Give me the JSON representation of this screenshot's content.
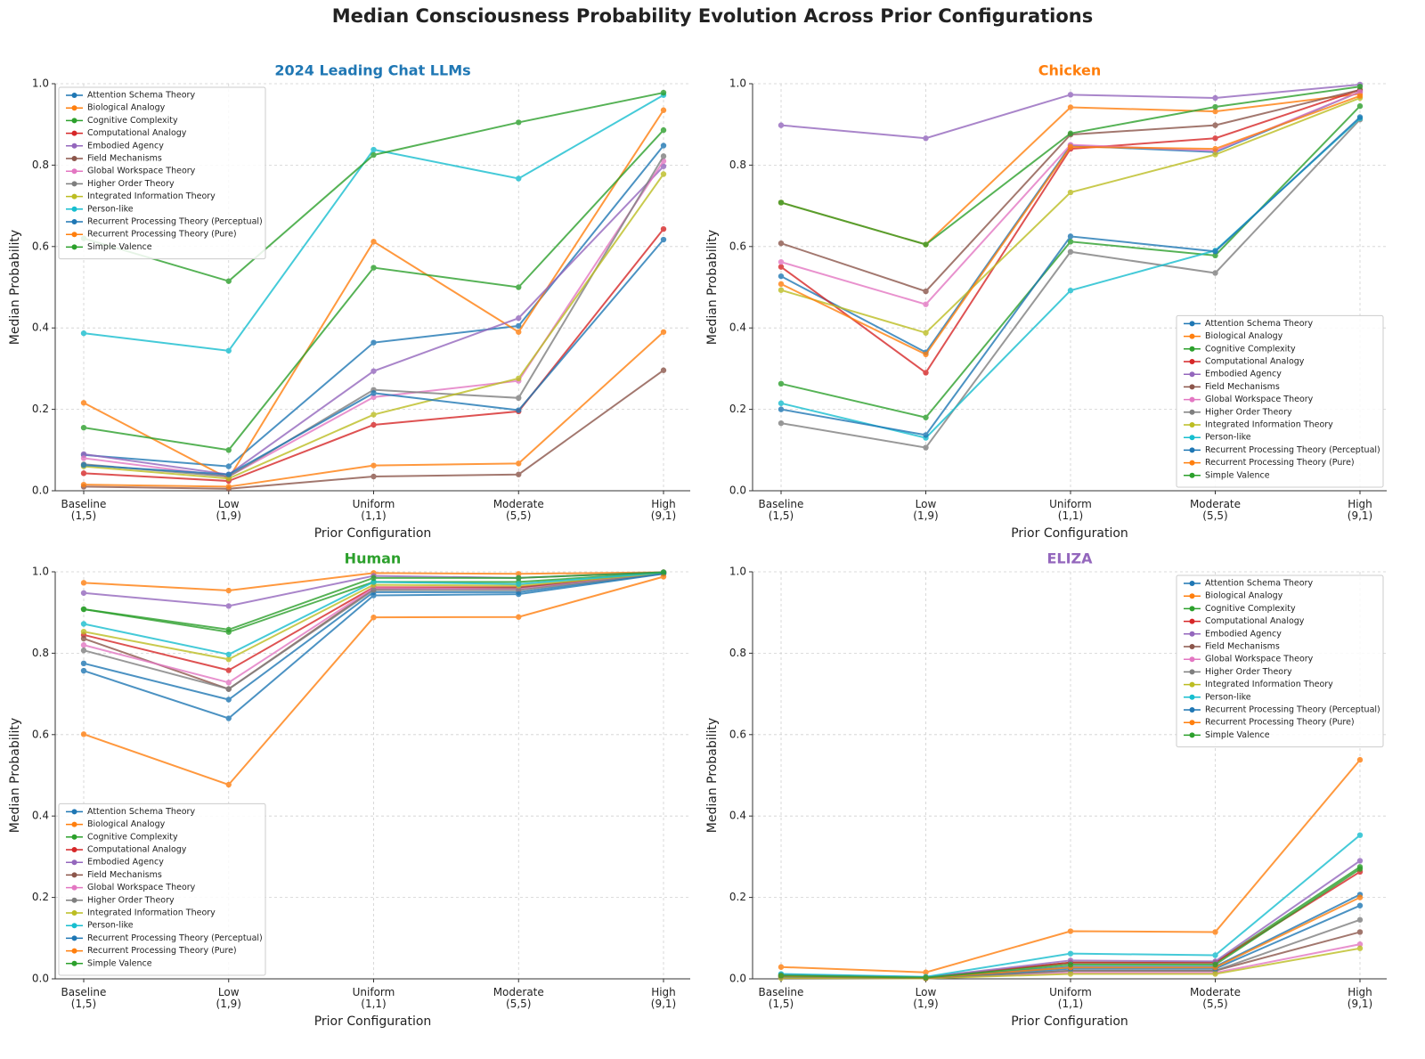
{
  "title": "Median Consciousness Probability Evolution Across Prior Configurations",
  "chart_data": [
    {
      "type": "line",
      "title": "2024 Leading Chat LLMs",
      "title_color": "#1f77b4",
      "xlabel": "Prior Configuration",
      "ylabel": "Median Probability",
      "legend": "upper left",
      "grid": true,
      "categories": [
        "Baseline\n(1,5)",
        "Low\n(1,9)",
        "Uniform\n(1,1)",
        "Moderate\n(5,5)",
        "High\n(9,1)"
      ],
      "ylim": [
        0,
        1
      ],
      "yticks": [
        {
          "value": 0,
          "label": "0.0"
        },
        0.2,
        0.4,
        0.6,
        0.8,
        {
          "value": 1,
          "label": "1.0"
        }
      ],
      "series": [
        {
          "name": "Attention Schema Theory",
          "color": "#1f77b4",
          "values": [
            0.088,
            0.06,
            0.364,
            0.405,
            0.848
          ]
        },
        {
          "name": "Biological Analogy",
          "color": "#ff7f0e",
          "values": [
            0.216,
            0.03,
            0.612,
            0.39,
            0.935
          ]
        },
        {
          "name": "Cognitive Complexity",
          "color": "#2ca02c",
          "values": [
            0.155,
            0.1,
            0.548,
            0.5,
            0.886
          ]
        },
        {
          "name": "Computational Analogy",
          "color": "#d62728",
          "values": [
            0.043,
            0.024,
            0.162,
            0.195,
            0.643
          ]
        },
        {
          "name": "Embodied Agency",
          "color": "#9467bd",
          "values": [
            0.09,
            0.04,
            0.294,
            0.424,
            0.797
          ]
        },
        {
          "name": "Field Mechanisms",
          "color": "#8c564b",
          "values": [
            0.01,
            0.005,
            0.035,
            0.04,
            0.296
          ]
        },
        {
          "name": "Global Workspace Theory",
          "color": "#e377c2",
          "values": [
            0.08,
            0.035,
            0.23,
            0.27,
            0.81
          ]
        },
        {
          "name": "Higher Order Theory",
          "color": "#7f7f7f",
          "values": [
            0.065,
            0.035,
            0.248,
            0.228,
            0.822
          ]
        },
        {
          "name": "Integrated Information Theory",
          "color": "#bcbd22",
          "values": [
            0.06,
            0.03,
            0.187,
            0.276,
            0.778
          ]
        },
        {
          "name": "Person-like",
          "color": "#17becf",
          "values": [
            0.387,
            0.344,
            0.838,
            0.767,
            0.972
          ]
        },
        {
          "name": "Recurrent Processing Theory (Perceptual)",
          "color": "#1f77b4",
          "values": [
            0.063,
            0.04,
            0.24,
            0.198,
            0.617
          ]
        },
        {
          "name": "Recurrent Processing Theory (Pure)",
          "color": "#ff7f0e",
          "values": [
            0.015,
            0.01,
            0.062,
            0.067,
            0.39
          ]
        },
        {
          "name": "Simple Valence",
          "color": "#2ca02c",
          "values": [
            0.62,
            0.515,
            0.825,
            0.905,
            0.978
          ]
        }
      ]
    },
    {
      "type": "line",
      "title": "Chicken",
      "title_color": "#ff7f0e",
      "xlabel": "Prior Configuration",
      "ylabel": "Median Probability",
      "legend": "lower right",
      "grid": true,
      "categories": [
        "Baseline\n(1,5)",
        "Low\n(1,9)",
        "Uniform\n(1,1)",
        "Moderate\n(5,5)",
        "High\n(9,1)"
      ],
      "ylim": [
        0,
        1
      ],
      "yticks": [
        {
          "value": 0,
          "label": "0.0"
        },
        0.2,
        0.4,
        0.6,
        0.8,
        {
          "value": 1,
          "label": "1.0"
        }
      ],
      "series": [
        {
          "name": "Attention Schema Theory",
          "color": "#1f77b4",
          "values": [
            0.527,
            0.34,
            0.848,
            0.832,
            0.98
          ]
        },
        {
          "name": "Biological Analogy",
          "color": "#ff7f0e",
          "values": [
            0.708,
            0.605,
            0.942,
            0.932,
            0.975
          ]
        },
        {
          "name": "Cognitive Complexity",
          "color": "#2ca02c",
          "values": [
            0.263,
            0.18,
            0.612,
            0.578,
            0.945
          ]
        },
        {
          "name": "Computational Analogy",
          "color": "#d62728",
          "values": [
            0.55,
            0.29,
            0.84,
            0.866,
            0.985
          ]
        },
        {
          "name": "Embodied Agency",
          "color": "#9467bd",
          "values": [
            0.898,
            0.866,
            0.973,
            0.965,
            0.998
          ]
        },
        {
          "name": "Field Mechanisms",
          "color": "#8c564b",
          "values": [
            0.608,
            0.49,
            0.875,
            0.898,
            0.985
          ]
        },
        {
          "name": "Global Workspace Theory",
          "color": "#e377c2",
          "values": [
            0.562,
            0.458,
            0.85,
            0.835,
            0.98
          ]
        },
        {
          "name": "Higher Order Theory",
          "color": "#7f7f7f",
          "values": [
            0.166,
            0.106,
            0.587,
            0.535,
            0.912
          ]
        },
        {
          "name": "Integrated Information Theory",
          "color": "#bcbd22",
          "values": [
            0.493,
            0.388,
            0.733,
            0.826,
            0.965
          ]
        },
        {
          "name": "Person-like",
          "color": "#17becf",
          "values": [
            0.215,
            0.13,
            0.492,
            0.59,
            0.915
          ]
        },
        {
          "name": "Recurrent Processing Theory (Perceptual)",
          "color": "#1f77b4",
          "values": [
            0.2,
            0.137,
            0.625,
            0.588,
            0.918
          ]
        },
        {
          "name": "Recurrent Processing Theory (Pure)",
          "color": "#ff7f0e",
          "values": [
            0.508,
            0.335,
            0.845,
            0.84,
            0.97
          ]
        },
        {
          "name": "Simple Valence",
          "color": "#2ca02c",
          "values": [
            0.708,
            0.605,
            0.878,
            0.943,
            0.993
          ]
        }
      ]
    },
    {
      "type": "line",
      "title": "Human",
      "title_color": "#2ca02c",
      "xlabel": "Prior Configuration",
      "ylabel": "Median Probability",
      "legend": "lower left",
      "grid": true,
      "categories": [
        "Baseline\n(1,5)",
        "Low\n(1,9)",
        "Uniform\n(1,1)",
        "Moderate\n(5,5)",
        "High\n(9,1)"
      ],
      "ylim": [
        0,
        1
      ],
      "yticks": [
        {
          "value": 0,
          "label": "0.0"
        },
        0.2,
        0.4,
        0.6,
        0.8,
        {
          "value": 1,
          "label": "1.0"
        }
      ],
      "series": [
        {
          "name": "Attention Schema Theory",
          "color": "#1f77b4",
          "values": [
            0.775,
            0.686,
            0.95,
            0.95,
            0.996
          ]
        },
        {
          "name": "Biological Analogy",
          "color": "#ff7f0e",
          "values": [
            0.973,
            0.954,
            0.997,
            0.995,
            0.999
          ]
        },
        {
          "name": "Cognitive Complexity",
          "color": "#2ca02c",
          "values": [
            0.908,
            0.852,
            0.975,
            0.975,
            0.998
          ]
        },
        {
          "name": "Computational Analogy",
          "color": "#d62728",
          "values": [
            0.845,
            0.758,
            0.962,
            0.962,
            0.997
          ]
        },
        {
          "name": "Embodied Agency",
          "color": "#9467bd",
          "values": [
            0.948,
            0.916,
            0.99,
            0.985,
            0.999
          ]
        },
        {
          "name": "Field Mechanisms",
          "color": "#8c564b",
          "values": [
            0.836,
            0.712,
            0.958,
            0.96,
            0.997
          ]
        },
        {
          "name": "Global Workspace Theory",
          "color": "#e377c2",
          "values": [
            0.82,
            0.728,
            0.96,
            0.957,
            0.997
          ]
        },
        {
          "name": "Higher Order Theory",
          "color": "#7f7f7f",
          "values": [
            0.807,
            0.712,
            0.955,
            0.955,
            0.996
          ]
        },
        {
          "name": "Integrated Information Theory",
          "color": "#bcbd22",
          "values": [
            0.853,
            0.785,
            0.968,
            0.966,
            0.997
          ]
        },
        {
          "name": "Person-like",
          "color": "#17becf",
          "values": [
            0.872,
            0.797,
            0.975,
            0.97,
            0.998
          ]
        },
        {
          "name": "Recurrent Processing Theory (Perceptual)",
          "color": "#1f77b4",
          "values": [
            0.757,
            0.64,
            0.942,
            0.945,
            0.995
          ]
        },
        {
          "name": "Recurrent Processing Theory (Pure)",
          "color": "#ff7f0e",
          "values": [
            0.601,
            0.477,
            0.888,
            0.889,
            0.988
          ]
        },
        {
          "name": "Simple Valence",
          "color": "#2ca02c",
          "values": [
            0.908,
            0.858,
            0.985,
            0.985,
            0.999
          ]
        }
      ]
    },
    {
      "type": "line",
      "title": "ELIZA",
      "title_color": "#9467bd",
      "xlabel": "Prior Configuration",
      "ylabel": "Median Probability",
      "legend": "upper right",
      "grid": true,
      "categories": [
        "Baseline\n(1,5)",
        "Low\n(1,9)",
        "Uniform\n(1,1)",
        "Moderate\n(5,5)",
        "High\n(9,1)"
      ],
      "ylim": [
        0,
        1
      ],
      "yticks": [
        {
          "value": 0,
          "label": "0.0"
        },
        0.2,
        0.4,
        0.6,
        0.8,
        {
          "value": 1,
          "label": "1.0"
        }
      ],
      "series": [
        {
          "name": "Attention Schema Theory",
          "color": "#1f77b4",
          "values": [
            0.008,
            0.002,
            0.03,
            0.03,
            0.207
          ]
        },
        {
          "name": "Biological Analogy",
          "color": "#ff7f0e",
          "values": [
            0.029,
            0.016,
            0.117,
            0.115,
            0.538
          ]
        },
        {
          "name": "Cognitive Complexity",
          "color": "#2ca02c",
          "values": [
            0.01,
            0.003,
            0.04,
            0.04,
            0.275
          ]
        },
        {
          "name": "Computational Analogy",
          "color": "#d62728",
          "values": [
            0.01,
            0.003,
            0.04,
            0.04,
            0.263
          ]
        },
        {
          "name": "Embodied Agency",
          "color": "#9467bd",
          "values": [
            0.01,
            0.004,
            0.045,
            0.043,
            0.29
          ]
        },
        {
          "name": "Field Mechanisms",
          "color": "#8c564b",
          "values": [
            0.004,
            0.001,
            0.02,
            0.02,
            0.115
          ]
        },
        {
          "name": "Global Workspace Theory",
          "color": "#e377c2",
          "values": [
            0.003,
            0.001,
            0.015,
            0.015,
            0.085
          ]
        },
        {
          "name": "Higher Order Theory",
          "color": "#7f7f7f",
          "values": [
            0.005,
            0.001,
            0.02,
            0.02,
            0.145
          ]
        },
        {
          "name": "Integrated Information Theory",
          "color": "#bcbd22",
          "values": [
            0.002,
            0.001,
            0.012,
            0.012,
            0.075
          ]
        },
        {
          "name": "Person-like",
          "color": "#17becf",
          "values": [
            0.012,
            0.005,
            0.062,
            0.058,
            0.353
          ]
        },
        {
          "name": "Recurrent Processing Theory (Perceptual)",
          "color": "#1f77b4",
          "values": [
            0.006,
            0.002,
            0.025,
            0.025,
            0.18
          ]
        },
        {
          "name": "Recurrent Processing Theory (Pure)",
          "color": "#ff7f0e",
          "values": [
            0.007,
            0.002,
            0.028,
            0.028,
            0.2
          ]
        },
        {
          "name": "Simple Valence",
          "color": "#2ca02c",
          "values": [
            0.008,
            0.003,
            0.035,
            0.035,
            0.27
          ]
        }
      ]
    }
  ]
}
